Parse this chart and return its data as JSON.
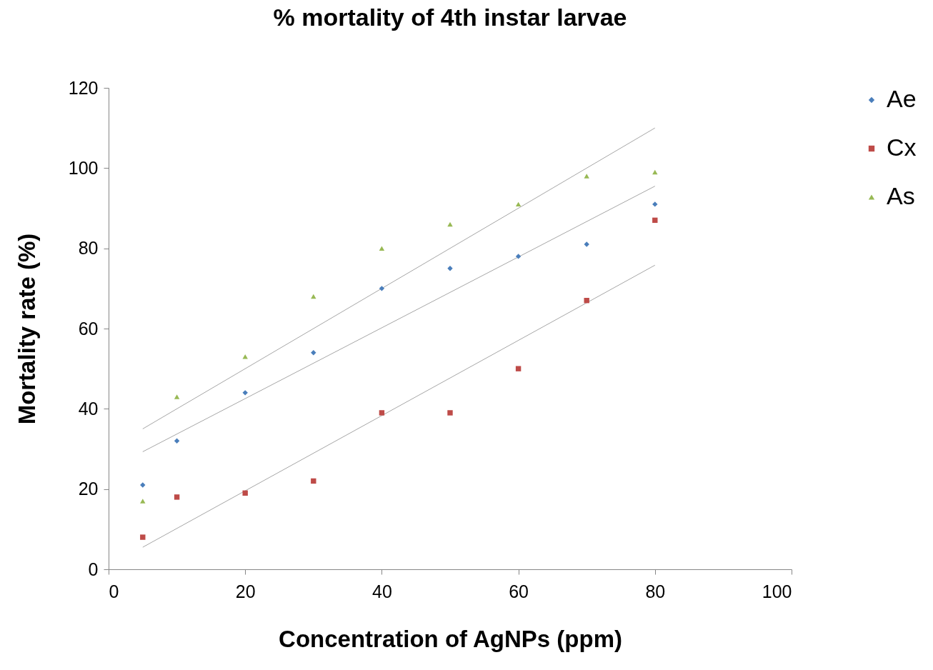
{
  "chart_data": {
    "type": "scatter",
    "title": "% mortality of 4th instar larvae",
    "xlabel": "Concentration of AgNPs (ppm)",
    "ylabel": "Mortality rate (%)",
    "xlim": [
      0,
      100
    ],
    "xticks": [
      0,
      20,
      40,
      60,
      80,
      100
    ],
    "ylim": [
      0,
      120
    ],
    "yticks": [
      0,
      20,
      40,
      60,
      80,
      100,
      120
    ],
    "grid": false,
    "legend": "right",
    "series": [
      {
        "name": "Ae",
        "color": "#4a7ebb",
        "marker": "diamond",
        "x": [
          5,
          10,
          20,
          30,
          40,
          50,
          60,
          70,
          80
        ],
        "values": [
          21,
          32,
          44,
          54,
          70,
          75,
          78,
          81,
          91
        ]
      },
      {
        "name": "Cx",
        "color": "#be4b48",
        "marker": "square",
        "x": [
          5,
          10,
          20,
          30,
          40,
          50,
          60,
          70,
          80
        ],
        "values": [
          8,
          18,
          19,
          22,
          39,
          39,
          50,
          67,
          87
        ]
      },
      {
        "name": "As",
        "color": "#98b954",
        "marker": "triangle",
        "x": [
          5,
          10,
          20,
          30,
          40,
          50,
          60,
          70,
          80
        ],
        "values": [
          17,
          43,
          53,
          68,
          80,
          86,
          91,
          98,
          99
        ]
      },
      {
        "type": "line",
        "color": "#a6a6a6",
        "x": [
          5,
          80
        ],
        "values": [
          29.3,
          95.5
        ]
      },
      {
        "type": "line",
        "color": "#a6a6a6",
        "x": [
          5,
          80
        ],
        "values": [
          5.5,
          75.8
        ]
      },
      {
        "type": "line",
        "color": "#a6a6a6",
        "x": [
          5,
          80
        ],
        "values": [
          35,
          110
        ]
      }
    ]
  }
}
